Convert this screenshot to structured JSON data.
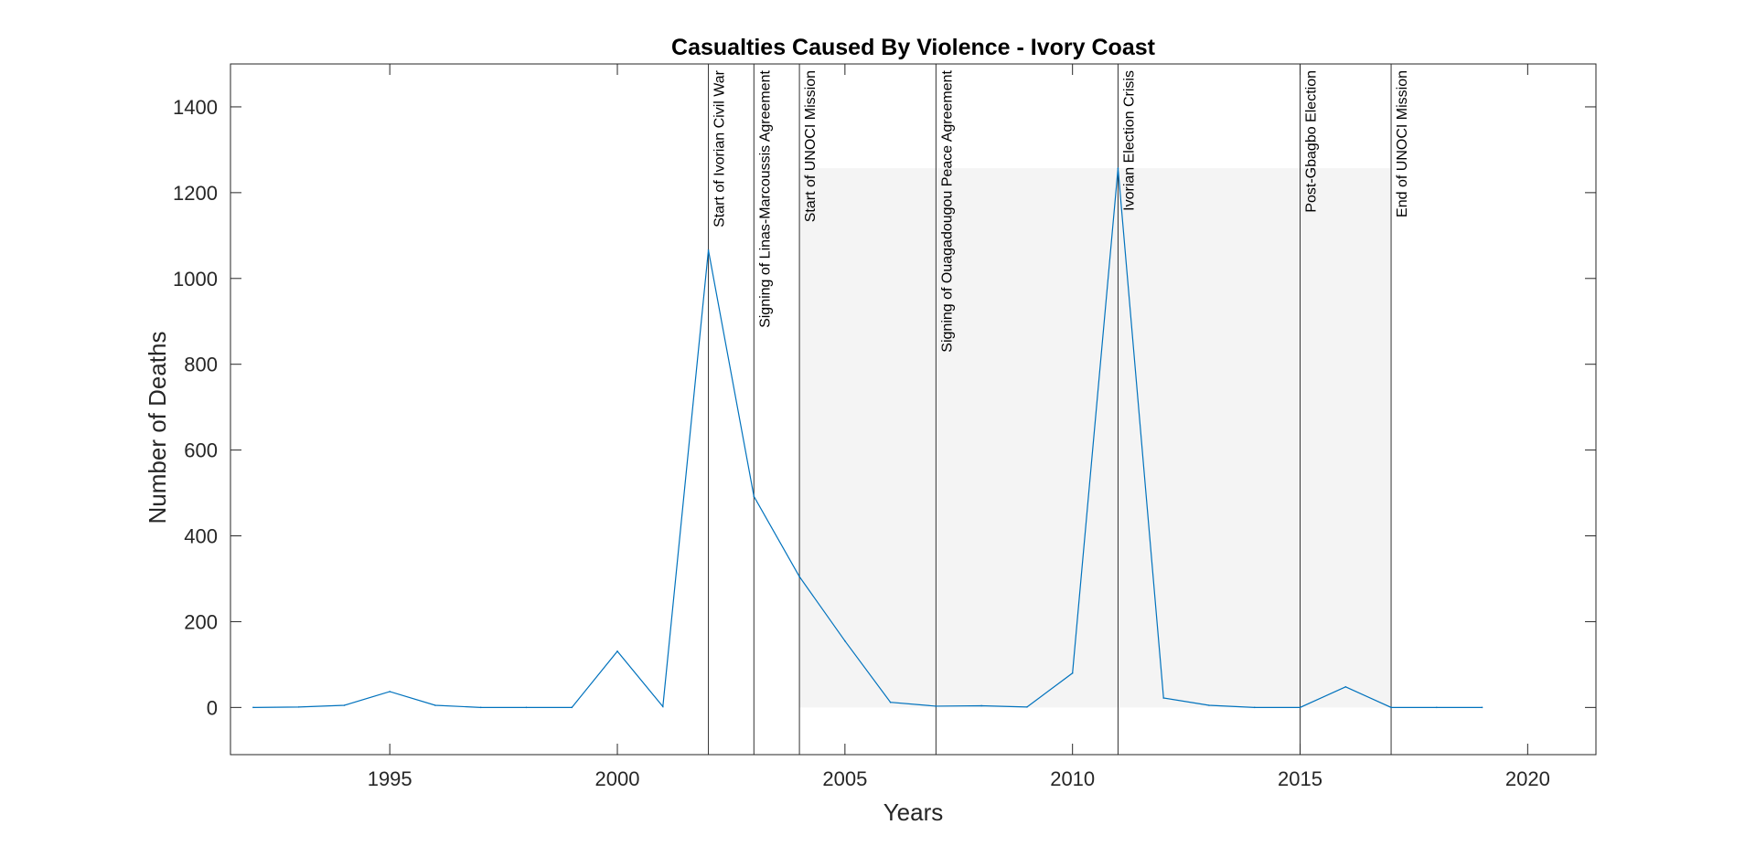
{
  "chart_data": {
    "type": "line",
    "title": "Casualties Caused By Violence - Ivory Coast",
    "xlabel": "Years",
    "ylabel": "Number of Deaths",
    "xlim": [
      1991.5,
      2021.5
    ],
    "ylim": [
      -110,
      1500
    ],
    "xticks": [
      1995,
      2000,
      2005,
      2010,
      2015,
      2020
    ],
    "yticks": [
      0,
      200,
      400,
      600,
      800,
      1000,
      1200,
      1400
    ],
    "grid": false,
    "series": [
      {
        "x": [
          1992,
          1993,
          1994,
          1995,
          1996,
          1997,
          1998,
          1999,
          2000,
          2001,
          2002,
          2003,
          2004,
          2005,
          2006,
          2007,
          2008,
          2009,
          2010,
          2011,
          2012,
          2013,
          2014,
          2015,
          2016,
          2017,
          2018,
          2019
        ],
        "y": [
          0,
          1,
          5,
          37,
          5,
          0,
          0,
          0,
          131,
          2,
          1066,
          492,
          305,
          155,
          12,
          3,
          4,
          1,
          80,
          1257,
          22,
          5,
          0,
          0,
          48,
          0,
          0,
          0
        ],
        "color": "#0072BD"
      }
    ],
    "shaded_region": {
      "x": [
        2004,
        2017
      ],
      "y": [
        0,
        1257
      ],
      "color": "#f4f4f4"
    },
    "event_lines": [
      {
        "x": 2002,
        "label": "Start of Ivorian Civil War"
      },
      {
        "x": 2003,
        "label": "Signing of Linas-Marcoussis Agreement"
      },
      {
        "x": 2004,
        "label": "Start of UNOCI  Mission"
      },
      {
        "x": 2007,
        "label": "Signing of Ouagadougou Peace Agreement"
      },
      {
        "x": 2011,
        "label": "Ivorian Election Crisis"
      },
      {
        "x": 2015,
        "label": "Post-Gbagbo Election"
      },
      {
        "x": 2017,
        "label": "End of UNOCI  Mission"
      }
    ]
  }
}
